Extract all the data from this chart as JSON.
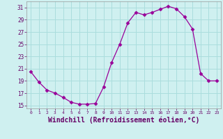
{
  "x": [
    0,
    1,
    2,
    3,
    4,
    5,
    6,
    7,
    8,
    9,
    10,
    11,
    12,
    13,
    14,
    15,
    16,
    17,
    18,
    19,
    20,
    21,
    22,
    23
  ],
  "y": [
    20.5,
    18.8,
    17.5,
    17.0,
    16.3,
    15.5,
    15.2,
    15.2,
    15.3,
    18.0,
    22.0,
    25.0,
    28.5,
    30.2,
    29.8,
    30.2,
    30.7,
    31.2,
    30.8,
    29.5,
    27.5,
    20.2,
    19.0,
    19.0
  ],
  "line_color": "#990099",
  "marker": "D",
  "marker_size": 2.5,
  "bg_color": "#cff0f0",
  "grid_color": "#aadddd",
  "xlabel": "Windchill (Refroidissement éolien,°C)",
  "xlabel_fontsize": 7,
  "ytick_labels": [
    "15",
    "17",
    "19",
    "21",
    "23",
    "25",
    "27",
    "29",
    "31"
  ],
  "ytick_values": [
    15,
    17,
    19,
    21,
    23,
    25,
    27,
    29,
    31
  ],
  "xtick_labels": [
    "0",
    "1",
    "2",
    "3",
    "4",
    "5",
    "6",
    "7",
    "8",
    "9",
    "10",
    "11",
    "12",
    "13",
    "14",
    "15",
    "16",
    "17",
    "18",
    "19",
    "20",
    "21",
    "22",
    "23"
  ],
  "xlim": [
    -0.5,
    23.5
  ],
  "ylim": [
    14.5,
    32.0
  ]
}
